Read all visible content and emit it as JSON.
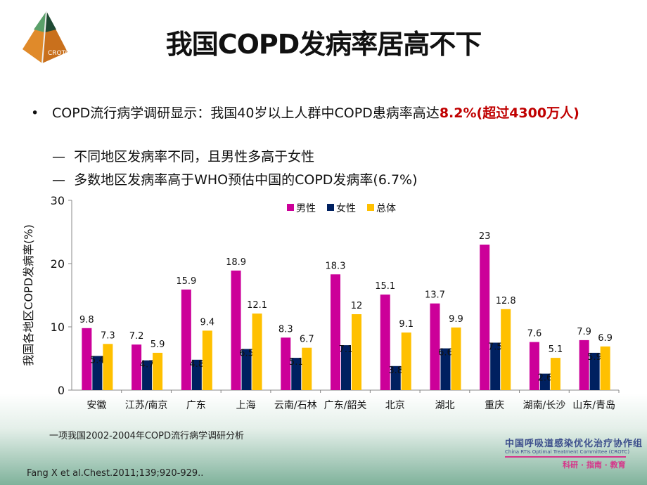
{
  "title": "我国COPD发病率居高不下",
  "logo_text": "CROTC",
  "bullets": {
    "main_prefix": "COPD流行病学调研显示：我国40岁以上人群中COPD患病率高达",
    "main_highlight": "8.2%(超过4300万人)",
    "sub": [
      "不同地区发病率不同，且男性多高于女性",
      "多数地区发病率高于WHO预估中国的COPD发病率(6.7%)"
    ],
    "dash": "—",
    "dot": "•"
  },
  "chart_data": {
    "type": "bar",
    "ylabel": "我国各地区COPD发病率(%)",
    "ylim": [
      0,
      30
    ],
    "yticks": [
      0,
      10,
      20,
      30
    ],
    "categories": [
      "安徽",
      "江苏/南京",
      "广东",
      "上海",
      "云南/石林",
      "广东/韶关",
      "北京",
      "湖北",
      "重庆",
      "湖南/长沙",
      "山东/青岛"
    ],
    "series": [
      {
        "name": "男性",
        "color": "#cc0099",
        "values": [
          9.8,
          7.2,
          15.9,
          18.9,
          8.3,
          18.3,
          15.1,
          13.7,
          23,
          7.6,
          7.9
        ]
      },
      {
        "name": "女性",
        "color": "#002060",
        "values": [
          5.4,
          4.7,
          4.8,
          6.5,
          5.1,
          7.1,
          3.8,
          6.6,
          7.5,
          2.6,
          5.9
        ]
      },
      {
        "name": "总体",
        "color": "#ffc000",
        "values": [
          7.3,
          5.9,
          9.4,
          12.1,
          6.7,
          12,
          9.1,
          9.9,
          12.8,
          5.1,
          6.9
        ]
      }
    ],
    "legend": "top-right",
    "grid": false
  },
  "source_note": "一项我国2002-2004年COPD流行病学调研分析",
  "reference": "Fang X et al.Chest.2011;139;920-929..",
  "org": {
    "cn": "中国呼吸道感染优化治疗协作组",
    "en": "China RTIs Optimal Treatment Committee (CROTC)",
    "motto": "科研 · 指南 · 教育"
  }
}
